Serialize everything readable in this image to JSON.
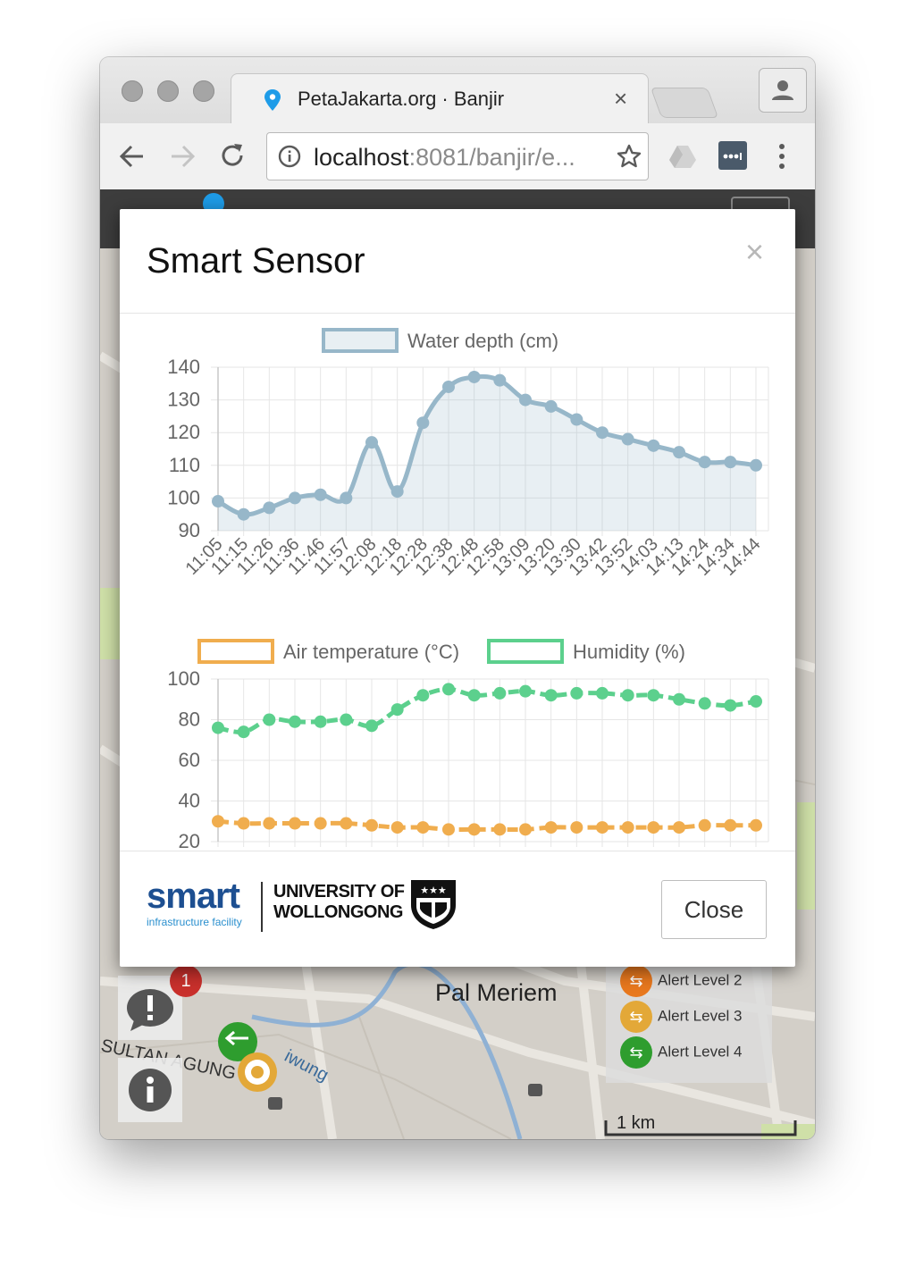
{
  "browser": {
    "tab_title": "PetaJakarta.org · Banjir",
    "tab_close": "×",
    "url_host": "localhost",
    "url_rest": ":8081/banjir/e..."
  },
  "map": {
    "place_pal_meriem": "Pal Meriem",
    "street_sultan_agung": "SULTAN AGUNG",
    "river_ciliwung": "iwung",
    "scale": "1 km",
    "notification_count": "1",
    "legend": [
      {
        "label": "Alert Level 2",
        "color": "#e8781e"
      },
      {
        "label": "Alert Level 3",
        "color": "#e3a838"
      },
      {
        "label": "Alert Level 4",
        "color": "#2e9d2e"
      }
    ]
  },
  "modal": {
    "title": "Smart Sensor",
    "close_x": "×",
    "close_button": "Close",
    "logo_smart": "smart",
    "logo_smart_sub": "infrastructure facility",
    "logo_uow_line1": "UNIVERSITY OF",
    "logo_uow_line2": "WOLLONGONG"
  },
  "colors": {
    "water": "#97b7c9",
    "water_fill": "rgba(151,183,201,0.22)",
    "temperature": "#f0ad4e",
    "humidity": "#5cd08d",
    "grid": "#e6e6e6",
    "tick_text": "#666666"
  },
  "chart_data": [
    {
      "type": "area",
      "x": [
        "11:05",
        "11:15",
        "11:26",
        "11:36",
        "11:46",
        "11:57",
        "12:08",
        "12:18",
        "12:28",
        "12:38",
        "12:48",
        "12:58",
        "13:09",
        "13:20",
        "13:30",
        "13:42",
        "13:52",
        "14:03",
        "14:13",
        "14:24",
        "14:34",
        "14:44"
      ],
      "series": [
        {
          "name": "Water depth (cm)",
          "values": [
            99,
            95,
            97,
            100,
            101,
            100,
            117,
            102,
            123,
            134,
            137,
            136,
            130,
            128,
            124,
            120,
            118,
            116,
            114,
            111,
            111,
            110
          ]
        }
      ],
      "xlabel": "",
      "ylabel": "",
      "ylim": [
        90,
        140
      ],
      "yticks": [
        90,
        100,
        110,
        120,
        130,
        140
      ],
      "grid": true,
      "legend": "top"
    },
    {
      "type": "line",
      "series": [
        {
          "name": "Air temperature (°C)",
          "values": [
            30,
            29,
            29,
            29,
            29,
            29,
            28,
            27,
            27,
            26,
            26,
            26,
            26,
            27,
            27,
            27,
            27,
            27,
            27,
            28,
            28,
            28
          ]
        },
        {
          "name": "Humidity (%)",
          "values": [
            76,
            74,
            80,
            79,
            79,
            80,
            77,
            85,
            92,
            95,
            92,
            93,
            94,
            92,
            93,
            93,
            92,
            92,
            90,
            88,
            87,
            89
          ]
        }
      ],
      "xlabel": "",
      "ylabel": "",
      "ylim": [
        20,
        100
      ],
      "yticks": [
        20,
        40,
        60,
        80,
        100
      ],
      "grid": true,
      "legend": "top"
    }
  ]
}
